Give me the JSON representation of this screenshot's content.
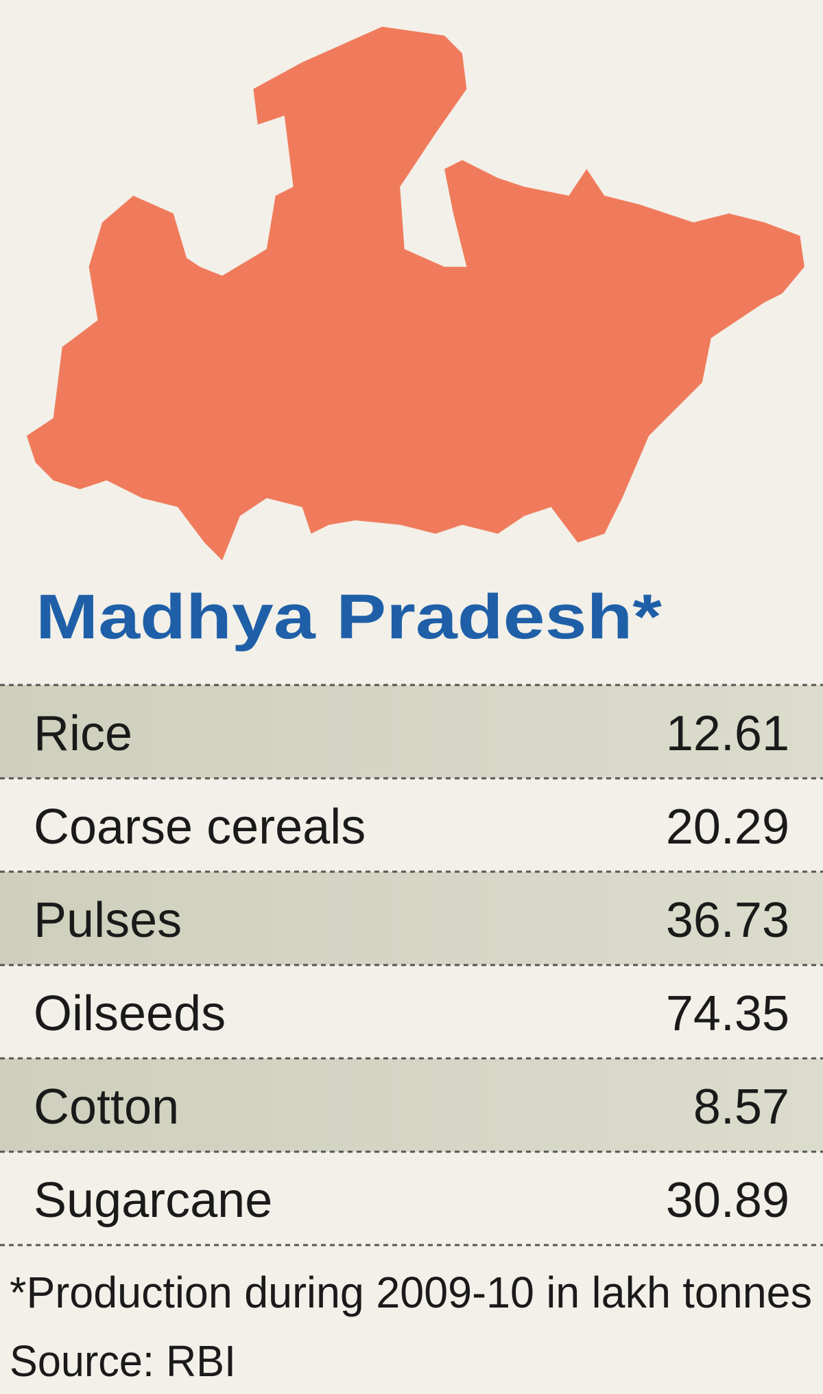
{
  "title": "Madhya Pradesh*",
  "table": {
    "rows": [
      [
        "Rice",
        12.61
      ],
      [
        "Coarse cereals",
        20.29
      ],
      [
        "Pulses",
        36.73
      ],
      [
        "Oilseeds",
        74.35
      ],
      [
        "Cotton",
        8.57
      ],
      [
        "Sugarcane",
        30.89
      ]
    ]
  },
  "footnote": "*Production during 2009-10 in lakh tonnes",
  "source": "Source: RBI"
}
